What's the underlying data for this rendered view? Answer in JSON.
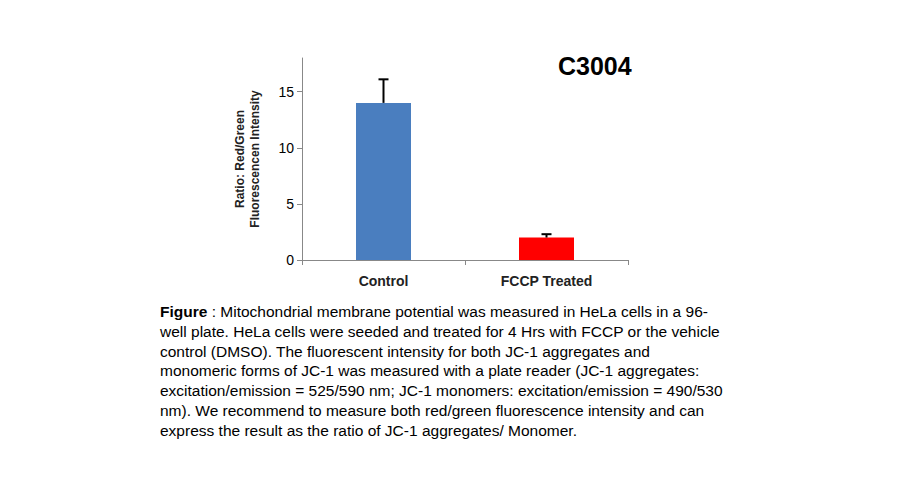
{
  "chart_data": {
    "type": "bar",
    "title": "C3004",
    "y_label": "Ratio: Red/Green\nFluorescencen Intensity",
    "categories": [
      "Control",
      "FCCP Treated"
    ],
    "values": [
      14,
      2
    ],
    "errors": [
      2.1,
      0.3
    ],
    "colors": [
      "#4a7ebf",
      "#ff0000"
    ],
    "ylim": [
      0,
      18
    ],
    "yticks": [
      0,
      5,
      10,
      15
    ],
    "grid": false,
    "caption": {
      "label": "Figure",
      "lines": [
        " : Mitochondrial membrane potential was measured in HeLa cells in a 96-",
        "well plate. HeLa cells were seeded and treated for 4 Hrs with FCCP or the vehicle",
        "control (DMSO). The fluorescent intensity for both JC-1 aggregates and",
        "monomeric forms of JC-1 was measured with a plate reader (JC-1 aggregates:",
        "excitation/emission = 525/590 nm; JC-1 monomers: excitation/emission = 490/530",
        "nm). We recommend to measure both red/green fluorescence intensity and can",
        "express the result as the ratio of JC-1 aggregates/ Monomer."
      ]
    }
  }
}
